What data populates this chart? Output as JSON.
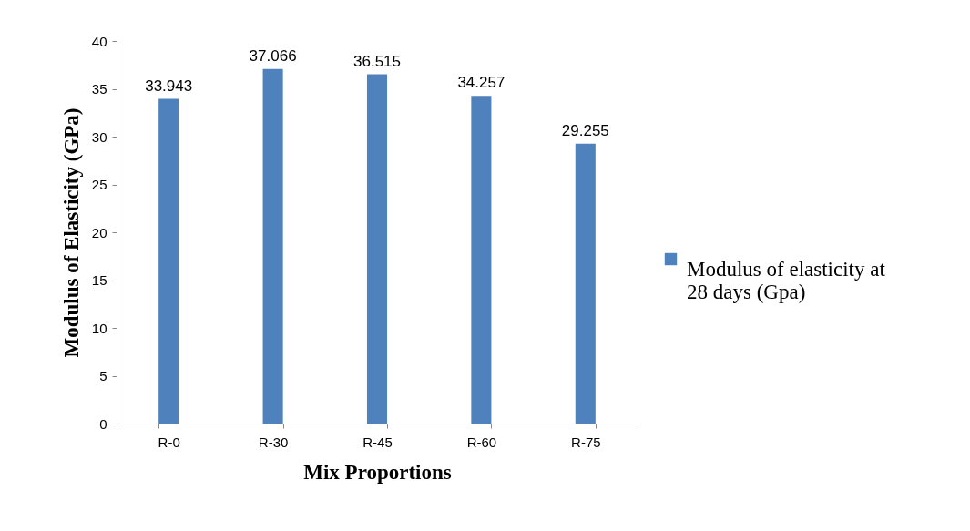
{
  "chart_data": {
    "type": "bar",
    "xlabel": "Mix Proportions",
    "ylabel": "Modulus of Elasticity (GPa)",
    "categories": [
      "R-0",
      "R-30",
      "R-45",
      "R-60",
      "R-75"
    ],
    "series": [
      {
        "name": "Modulus of elasticity at 28 days (Gpa)",
        "color": "#4f81bd",
        "values": [
          33.943,
          37.066,
          36.515,
          34.257,
          29.255
        ]
      }
    ],
    "ylim": [
      0,
      40
    ],
    "yticks": [
      0,
      5,
      10,
      15,
      20,
      25,
      30,
      35,
      40
    ],
    "grid": false,
    "legend": "right",
    "data_labels": true
  }
}
